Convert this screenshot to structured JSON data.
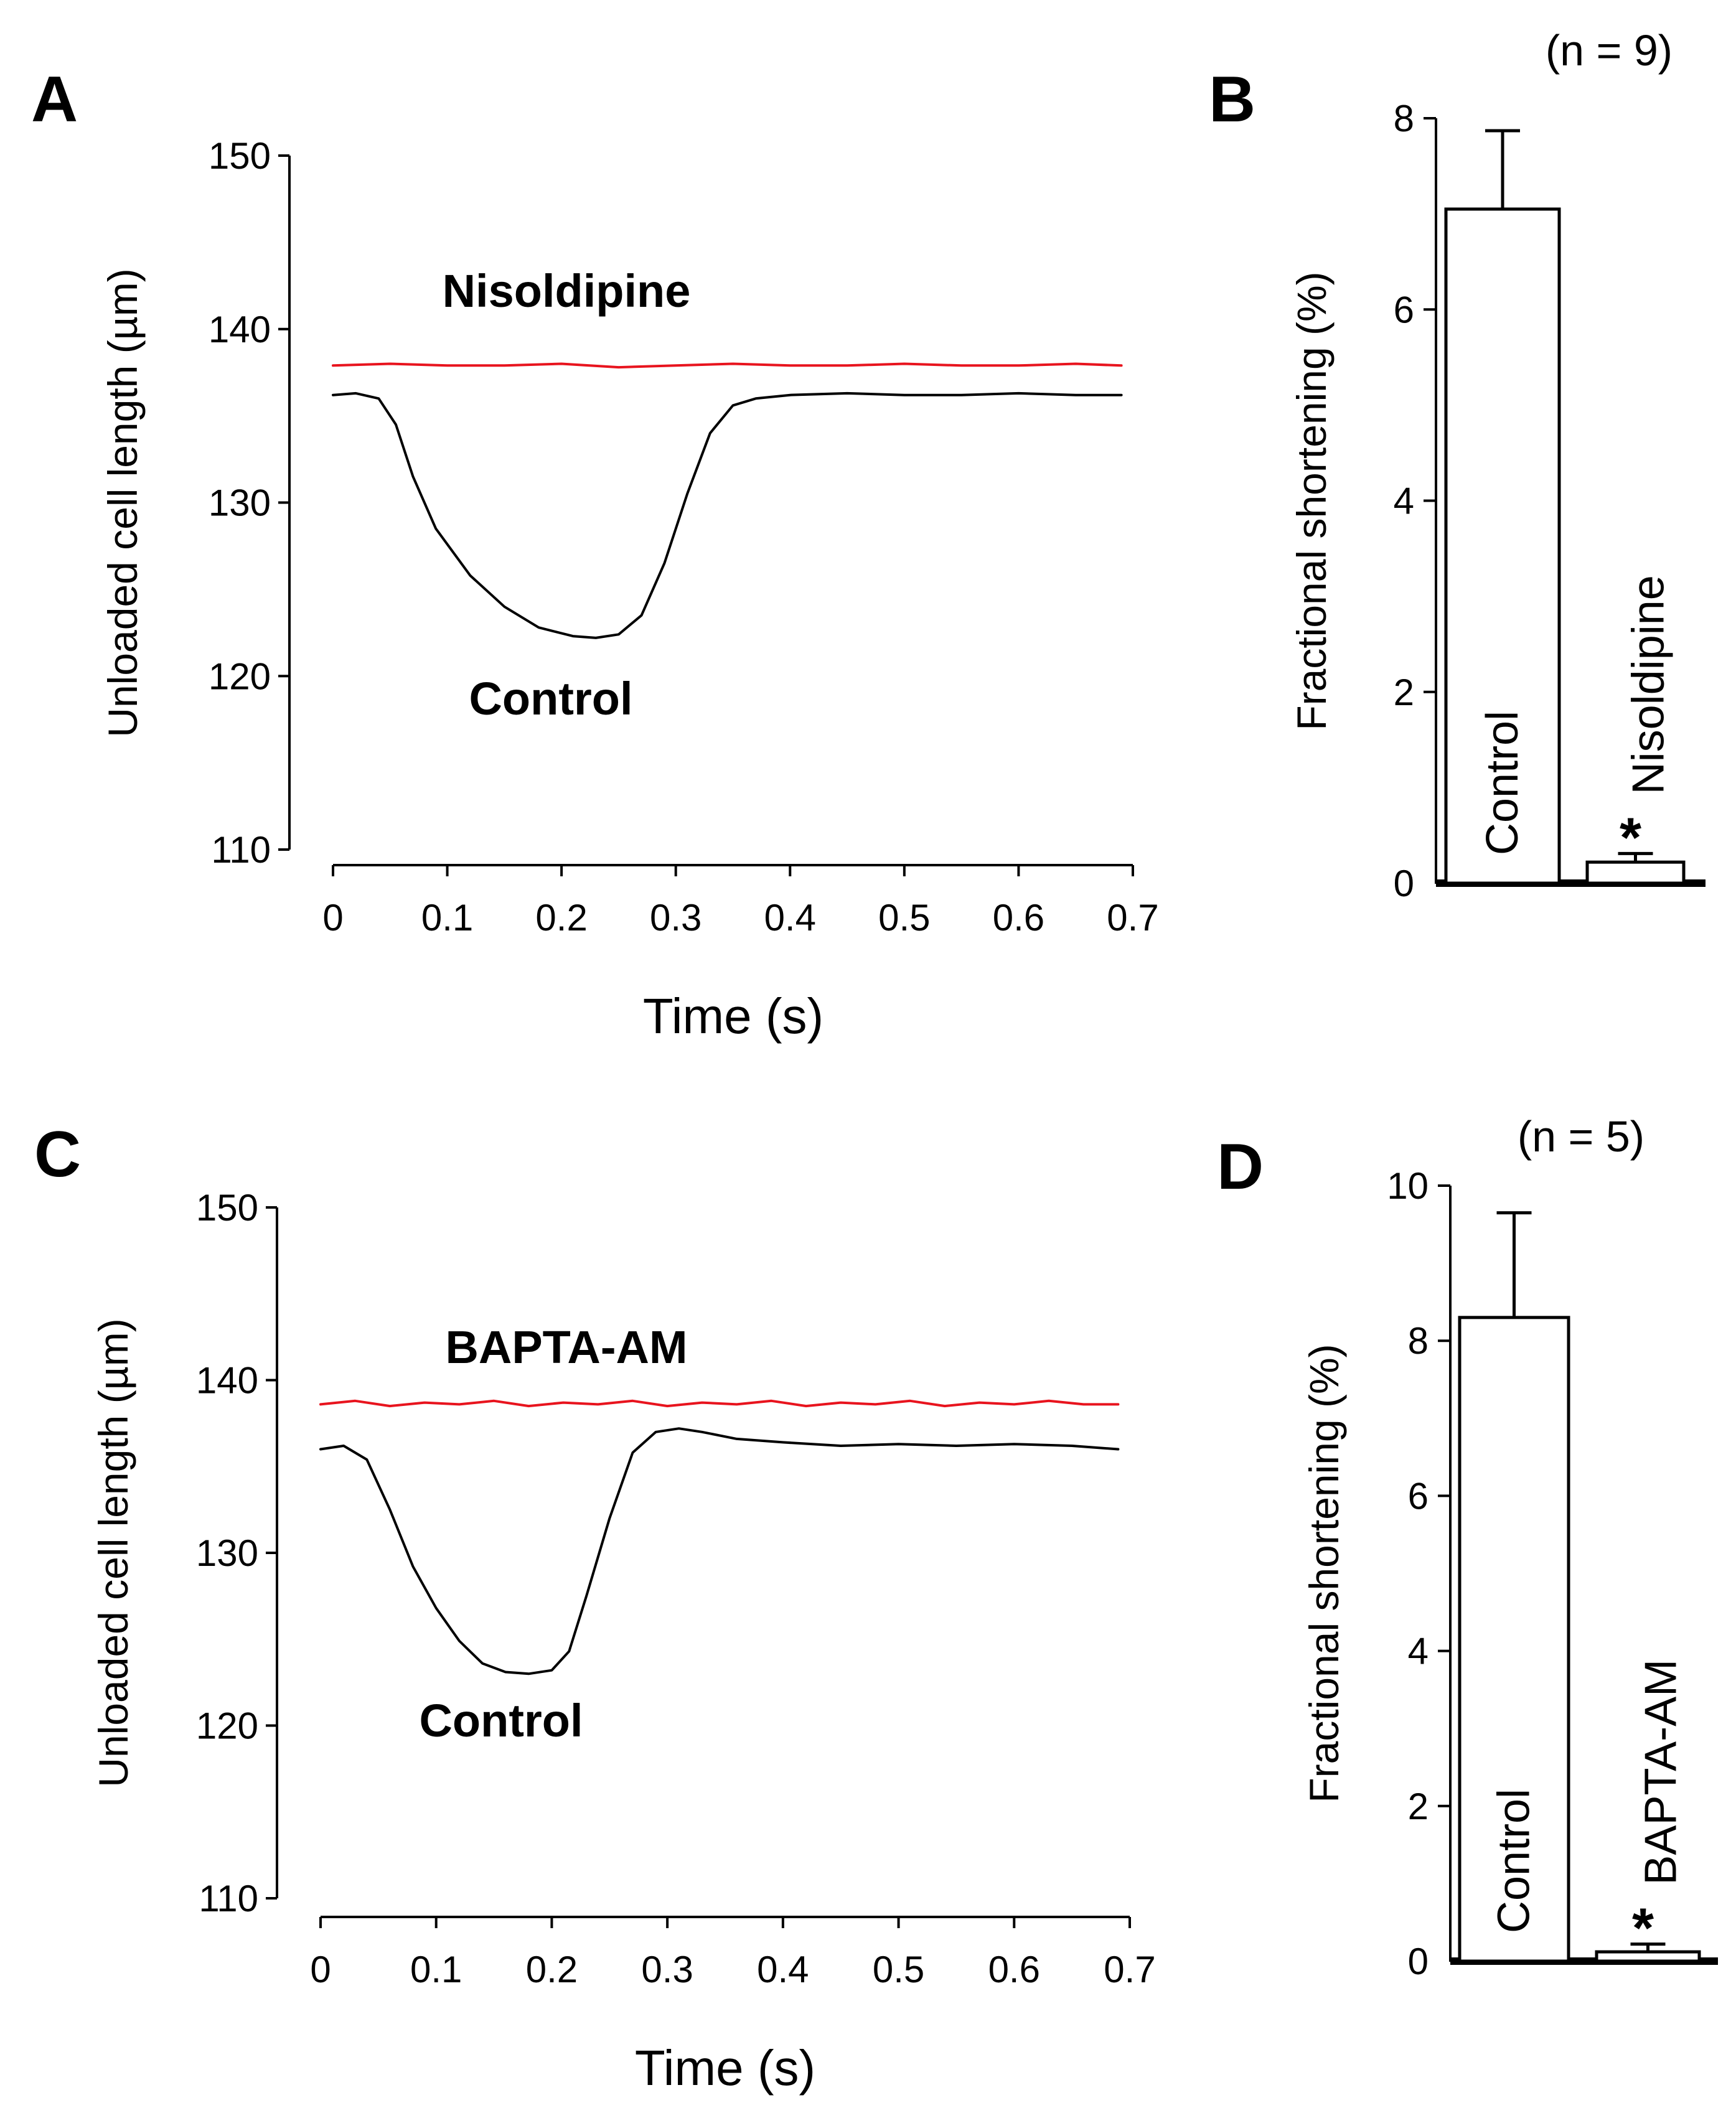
{
  "figure": {
    "panels": {
      "A": {
        "letter": "A"
      },
      "B": {
        "letter": "B"
      },
      "C": {
        "letter": "C"
      },
      "D": {
        "letter": "D"
      }
    }
  },
  "colors": {
    "control": "#000000",
    "treatment": "#e8141e"
  },
  "chart_data": [
    {
      "id": "A",
      "type": "line",
      "ylabel": "Unloaded cell length (µm)",
      "xlabel": "Time (s)",
      "xlim": [
        0,
        0.7
      ],
      "ylim": [
        110,
        150
      ],
      "xticks": [
        0,
        0.1,
        0.2,
        0.3,
        0.4,
        0.5,
        0.6,
        0.7
      ],
      "xtick_labels": [
        "0",
        "0.1",
        "0.2",
        "0.3",
        "0.4",
        "0.5",
        "0.6",
        "0.7"
      ],
      "yticks": [
        110,
        120,
        130,
        140,
        150
      ],
      "ytick_labels": [
        "110",
        "120",
        "130",
        "140",
        "150"
      ],
      "series": [
        {
          "name": "Nisoldipine",
          "color": "#e8141e",
          "x": [
            0,
            0.05,
            0.1,
            0.15,
            0.2,
            0.25,
            0.3,
            0.35,
            0.4,
            0.45,
            0.5,
            0.55,
            0.6,
            0.65,
            0.69
          ],
          "y": [
            137.9,
            138.0,
            137.9,
            137.9,
            138.0,
            137.8,
            137.9,
            138.0,
            137.9,
            137.9,
            138.0,
            137.9,
            137.9,
            138.0,
            137.9
          ]
        },
        {
          "name": "Control",
          "color": "#000000",
          "x": [
            0,
            0.02,
            0.04,
            0.055,
            0.07,
            0.09,
            0.12,
            0.15,
            0.18,
            0.21,
            0.23,
            0.25,
            0.27,
            0.29,
            0.31,
            0.33,
            0.35,
            0.37,
            0.4,
            0.45,
            0.5,
            0.55,
            0.6,
            0.65,
            0.69
          ],
          "y": [
            136.2,
            136.3,
            136.0,
            134.5,
            131.5,
            128.5,
            125.8,
            124.0,
            122.8,
            122.3,
            122.2,
            122.4,
            123.5,
            126.5,
            130.5,
            134.0,
            135.6,
            136.0,
            136.2,
            136.3,
            136.2,
            136.2,
            136.3,
            136.2,
            136.2
          ]
        }
      ],
      "annotations": [
        "Nisoldipine",
        "Control"
      ]
    },
    {
      "id": "B",
      "type": "bar",
      "ylabel": "Fractional shortening (%)",
      "ylim": [
        0,
        8
      ],
      "yticks": [
        0,
        2,
        4,
        6,
        8
      ],
      "ytick_labels": [
        "0",
        "2",
        "4",
        "6",
        "8"
      ],
      "categories": [
        "Control",
        "Nisoldipine"
      ],
      "values": [
        7.05,
        0.22
      ],
      "errors": [
        0.82,
        0.09
      ],
      "significance": [
        "",
        "*"
      ],
      "n_label": "(n = 9)"
    },
    {
      "id": "C",
      "type": "line",
      "ylabel": "Unloaded cell length (µm)",
      "xlabel": "Time (s)",
      "xlim": [
        0,
        0.7
      ],
      "ylim": [
        110,
        150
      ],
      "xticks": [
        0,
        0.1,
        0.2,
        0.3,
        0.4,
        0.5,
        0.6,
        0.7
      ],
      "xtick_labels": [
        "0",
        "0.1",
        "0.2",
        "0.3",
        "0.4",
        "0.5",
        "0.6",
        "0.7"
      ],
      "yticks": [
        110,
        120,
        130,
        140,
        150
      ],
      "ytick_labels": [
        "110",
        "120",
        "130",
        "140",
        "150"
      ],
      "series": [
        {
          "name": "BAPTA-AM",
          "color": "#e8141e",
          "x": [
            0,
            0.03,
            0.06,
            0.09,
            0.12,
            0.15,
            0.18,
            0.21,
            0.24,
            0.27,
            0.3,
            0.33,
            0.36,
            0.39,
            0.42,
            0.45,
            0.48,
            0.51,
            0.54,
            0.57,
            0.6,
            0.63,
            0.66,
            0.69
          ],
          "y": [
            138.6,
            138.8,
            138.5,
            138.7,
            138.6,
            138.8,
            138.5,
            138.7,
            138.6,
            138.8,
            138.5,
            138.7,
            138.6,
            138.8,
            138.5,
            138.7,
            138.6,
            138.8,
            138.5,
            138.7,
            138.6,
            138.8,
            138.6,
            138.6
          ]
        },
        {
          "name": "Control",
          "color": "#000000",
          "x": [
            0,
            0.02,
            0.04,
            0.06,
            0.08,
            0.1,
            0.12,
            0.14,
            0.16,
            0.18,
            0.2,
            0.215,
            0.23,
            0.25,
            0.27,
            0.29,
            0.31,
            0.33,
            0.36,
            0.4,
            0.45,
            0.5,
            0.55,
            0.6,
            0.65,
            0.69
          ],
          "y": [
            136.0,
            136.2,
            135.4,
            132.5,
            129.2,
            126.8,
            124.9,
            123.6,
            123.1,
            123.0,
            123.2,
            124.3,
            127.5,
            132.0,
            135.8,
            137.0,
            137.2,
            137.0,
            136.6,
            136.4,
            136.2,
            136.3,
            136.2,
            136.3,
            136.2,
            136.0
          ]
        }
      ],
      "annotations": [
        "BAPTA-AM",
        "Control"
      ]
    },
    {
      "id": "D",
      "type": "bar",
      "ylabel": "Fractional shortening (%)",
      "ylim": [
        0,
        10
      ],
      "yticks": [
        0,
        2,
        4,
        6,
        8,
        10
      ],
      "ytick_labels": [
        "0",
        "2",
        "4",
        "6",
        "8",
        "10"
      ],
      "categories": [
        "Control",
        "BAPTA-AM"
      ],
      "values": [
        8.3,
        0.12
      ],
      "errors": [
        1.35,
        0.1
      ],
      "significance": [
        "",
        "*"
      ],
      "n_label": "(n = 5)"
    }
  ]
}
